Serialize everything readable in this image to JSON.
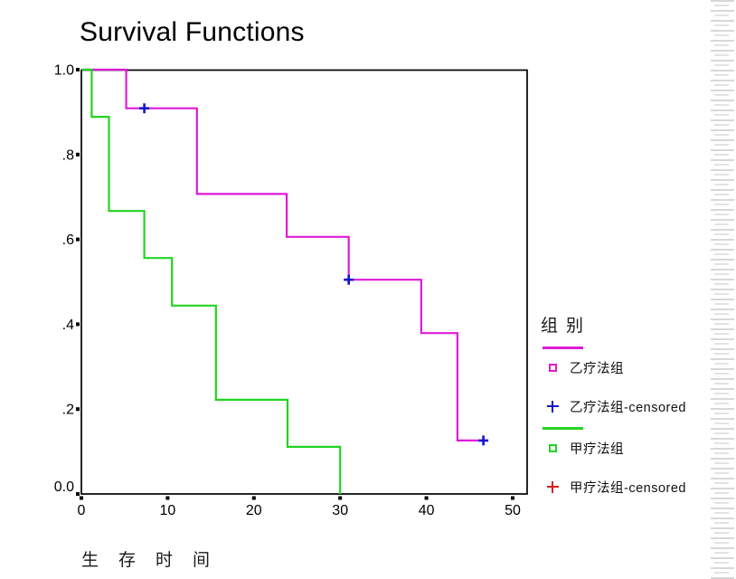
{
  "chart_data": {
    "type": "line",
    "subtype": "kaplan-meier-survival-steps",
    "title": "Survival Functions",
    "xlabel": "生存时间",
    "ylabel": "",
    "xlim": [
      0,
      50
    ],
    "ylim": [
      0,
      1.0
    ],
    "grid": false,
    "legend_position": "right",
    "x_ticks": [
      0,
      10,
      20,
      30,
      40,
      50
    ],
    "y_ticks": [
      {
        "label": "1.0",
        "value": 1.0
      },
      {
        "label": ".8",
        "value": 0.8
      },
      {
        "label": ".6",
        "value": 0.6
      },
      {
        "label": ".4",
        "value": 0.4
      },
      {
        "label": ".2",
        "value": 0.2
      },
      {
        "label": "0.0",
        "value": 0.0
      }
    ],
    "series": [
      {
        "name": "乙疗法组",
        "color": "#e01ad8",
        "censor_color": "#1414cc",
        "start": [
          0,
          1.0
        ],
        "steps": [
          [
            5.2,
            0.909
          ],
          [
            13.4,
            0.707
          ],
          [
            23.8,
            0.606
          ],
          [
            31.0,
            0.505
          ],
          [
            39.4,
            0.379
          ],
          [
            43.6,
            0.126
          ]
        ],
        "end_t": 46.2,
        "censored_points": [
          [
            7.3,
            0.909
          ],
          [
            31.0,
            0.505
          ],
          [
            46.6,
            0.126
          ]
        ]
      },
      {
        "name": "甲疗法组",
        "color": "#21d421",
        "censor_color": "#d42020",
        "start": [
          0,
          1.0
        ],
        "steps": [
          [
            1.2,
            0.889
          ],
          [
            3.2,
            0.667
          ],
          [
            7.3,
            0.556
          ],
          [
            10.5,
            0.444
          ],
          [
            15.6,
            0.222
          ],
          [
            23.9,
            0.111
          ],
          [
            30.0,
            0.0
          ]
        ],
        "end_t": 30.0,
        "censored_points": []
      }
    ]
  },
  "legend": {
    "title": "组别",
    "entries": [
      {
        "label": "乙疗法组",
        "marker": "open-square",
        "color": "#e01ad8",
        "has_line_swatch": true
      },
      {
        "label": "乙疗法组-censored",
        "marker": "plus",
        "color": "#1414cc",
        "has_line_swatch": false
      },
      {
        "label": "甲疗法组",
        "marker": "open-square",
        "color": "#21d421",
        "has_line_swatch": true
      },
      {
        "label": "甲疗法组-censored",
        "marker": "plus",
        "color": "#d42020",
        "has_line_swatch": false
      }
    ]
  }
}
